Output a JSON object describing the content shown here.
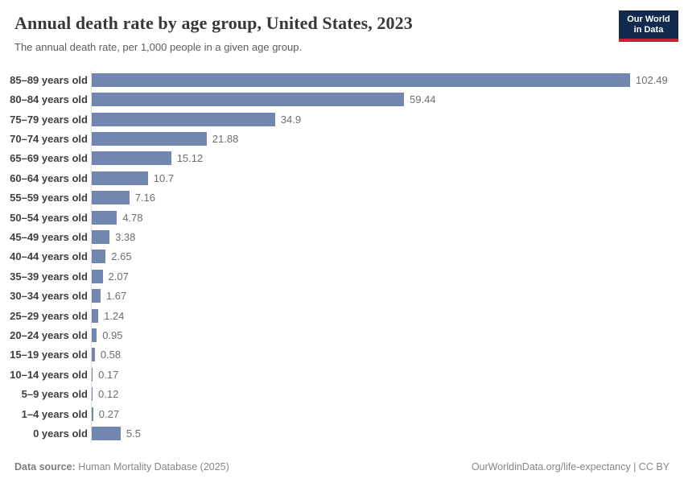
{
  "header": {
    "title": "Annual death rate by age group, United States, 2023",
    "subtitle": "The annual death rate, per 1,000 people in a given age group.",
    "logo": {
      "line1": "Our World",
      "line2": "in Data"
    }
  },
  "chart_data": {
    "type": "bar",
    "orientation": "horizontal",
    "title": "Annual death rate by age group, United States, 2023",
    "xlabel": "",
    "ylabel": "",
    "xlim": [
      0,
      110
    ],
    "grid": false,
    "legend": "none",
    "bar_color": "#7187af",
    "categories": [
      "85–89 years old",
      "80–84 years old",
      "75–79 years old",
      "70–74 years old",
      "65–69 years old",
      "60–64 years old",
      "55–59 years old",
      "50–54 years old",
      "45–49 years old",
      "40–44 years old",
      "35–39 years old",
      "30–34 years old",
      "25–29 years old",
      "20–24 years old",
      "15–19 years old",
      "10–14 years old",
      "5–9 years old",
      "1–4 years old",
      "0 years old"
    ],
    "values": [
      102.49,
      59.44,
      34.9,
      21.88,
      15.12,
      10.7,
      7.16,
      4.78,
      3.38,
      2.65,
      2.07,
      1.67,
      1.24,
      0.95,
      0.58,
      0.17,
      0.12,
      0.27,
      5.5
    ],
    "value_labels": [
      "102.49",
      "59.44",
      "34.9",
      "21.88",
      "15.12",
      "10.7",
      "7.16",
      "4.78",
      "3.38",
      "2.65",
      "2.07",
      "1.67",
      "1.24",
      "0.95",
      "0.58",
      "0.17",
      "0.12",
      "0.27",
      "5.5"
    ]
  },
  "footer": {
    "source_label": "Data source:",
    "source_text": " Human Mortality Database (2025)",
    "link_text": "OurWorldinData.org/life-expectancy | CC BY"
  },
  "colors": {
    "bar": "#7187af",
    "axis_line": "#dcdcdc",
    "title_text": "#383838",
    "subtitle_text": "#5c5c5c",
    "category_label": "#3f3f3f",
    "value_label": "#6e6e6e",
    "footer_text": "#878787",
    "logo_navy": "#122a4e",
    "logo_red": "#c42331"
  }
}
